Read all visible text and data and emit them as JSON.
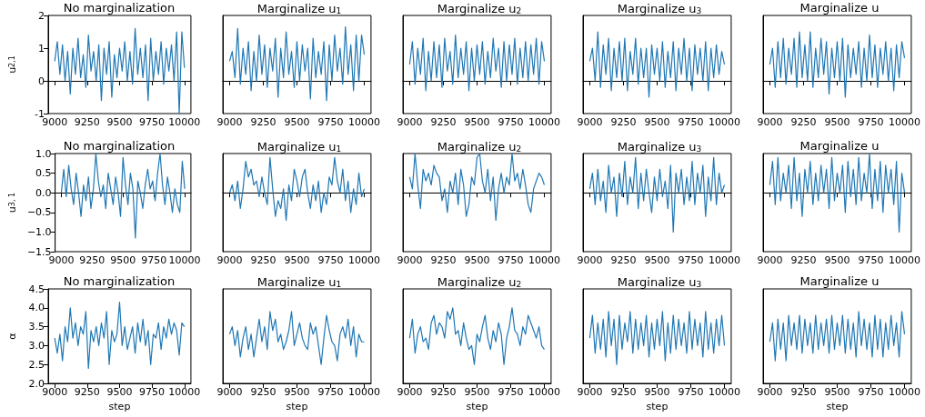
{
  "chart_data": [
    {
      "type": "line",
      "title": "No marginalization",
      "ylabel": "u$_{2,1}$",
      "xlim": [
        8950,
        10050
      ],
      "xticks": [
        9000,
        9250,
        9500,
        9750,
        10000
      ],
      "ylim": [
        -1,
        2
      ],
      "yticks": [
        -1,
        0,
        1,
        2
      ],
      "x": [
        9000,
        9020,
        9040,
        9060,
        9080,
        9100,
        9120,
        9140,
        9160,
        9180,
        9200,
        9220,
        9240,
        9260,
        9280,
        9300,
        9320,
        9340,
        9360,
        9380,
        9400,
        9420,
        9440,
        9460,
        9480,
        9500,
        9520,
        9540,
        9560,
        9580,
        9600,
        9620,
        9640,
        9660,
        9680,
        9700,
        9720,
        9740,
        9760,
        9780,
        9800,
        9820,
        9840,
        9860,
        9880,
        9900,
        9920,
        9940,
        9960,
        9980,
        10000
      ],
      "series": [
        {
          "color": "#1f77b4",
          "values": [
            0.6,
            1.2,
            0.2,
            1.1,
            0.0,
            0.9,
            -0.4,
            1.0,
            0.2,
            1.3,
            0.1,
            0.8,
            -0.2,
            1.4,
            0.3,
            0.9,
            0.0,
            1.1,
            -0.6,
            1.0,
            0.2,
            1.2,
            -0.5,
            0.8,
            0.1,
            1.0,
            0.3,
            1.2,
            0.0,
            0.9,
            -0.1,
            1.6,
            0.2,
            1.0,
            0.1,
            1.1,
            -0.6,
            1.3,
            0.0,
            0.9,
            0.2,
            1.2,
            -0.1,
            1.0,
            0.3,
            1.1,
            0.0,
            1.5,
            -1.0,
            1.5,
            0.4
          ]
        }
      ]
    },
    {
      "type": "line",
      "title": "Marginalize u$_{1}$",
      "tick_labels": "x",
      "xlim": [
        8950,
        10050
      ],
      "xticks": [
        9000,
        9250,
        9500,
        9750,
        10000
      ],
      "ylim": [
        -1,
        2
      ],
      "yticks": [
        -1,
        0,
        1,
        2
      ],
      "x": [
        9000,
        9020,
        9040,
        9060,
        9080,
        9100,
        9120,
        9140,
        9160,
        9180,
        9200,
        9220,
        9240,
        9260,
        9280,
        9300,
        9320,
        9340,
        9360,
        9380,
        9400,
        9420,
        9440,
        9460,
        9480,
        9500,
        9520,
        9540,
        9560,
        9580,
        9600,
        9620,
        9640,
        9660,
        9680,
        9700,
        9720,
        9740,
        9760,
        9780,
        9800,
        9820,
        9840,
        9860,
        9880,
        9900,
        9920,
        9940,
        9960,
        9980,
        10000
      ],
      "series": [
        {
          "color": "#1f77b4",
          "values": [
            0.6,
            0.9,
            0.1,
            1.6,
            -0.1,
            1.0,
            0.2,
            1.2,
            -0.3,
            0.9,
            0.0,
            1.4,
            0.2,
            1.1,
            -0.2,
            1.0,
            0.3,
            1.3,
            -0.5,
            1.0,
            0.1,
            1.5,
            0.2,
            0.9,
            -0.2,
            1.2,
            0.0,
            1.1,
            0.3,
            1.0,
            -0.55,
            1.3,
            0.1,
            0.9,
            0.2,
            1.2,
            -0.6,
            1.1,
            0.0,
            1.4,
            0.3,
            1.0,
            -0.1,
            1.65,
            0.2,
            1.1,
            -0.3,
            1.4,
            0.0,
            1.4,
            0.8
          ]
        }
      ]
    },
    {
      "type": "line",
      "title": "Marginalize u$_{2}$",
      "tick_labels": "x",
      "xlim": [
        8950,
        10050
      ],
      "xticks": [
        9000,
        9250,
        9500,
        9750,
        10000
      ],
      "ylim": [
        -1,
        2
      ],
      "yticks": [
        -1,
        0,
        1,
        2
      ],
      "x": [
        9000,
        9020,
        9040,
        9060,
        9080,
        9100,
        9120,
        9140,
        9160,
        9180,
        9200,
        9220,
        9240,
        9260,
        9280,
        9300,
        9320,
        9340,
        9360,
        9380,
        9400,
        9420,
        9440,
        9460,
        9480,
        9500,
        9520,
        9540,
        9560,
        9580,
        9600,
        9620,
        9640,
        9660,
        9680,
        9700,
        9720,
        9740,
        9760,
        9780,
        9800,
        9820,
        9840,
        9860,
        9880,
        9900,
        9920,
        9940,
        9960,
        9980,
        10000
      ],
      "series": [
        {
          "color": "#1f77b4",
          "values": [
            0.5,
            1.2,
            -0.1,
            1.0,
            0.2,
            1.3,
            -0.3,
            0.9,
            0.0,
            1.2,
            0.1,
            1.1,
            -0.2,
            1.3,
            0.3,
            0.9,
            -0.1,
            1.4,
            0.1,
            1.0,
            0.2,
            1.2,
            -0.3,
            1.0,
            0.0,
            1.1,
            0.2,
            1.2,
            -0.1,
            0.9,
            0.1,
            1.3,
            0.3,
            1.0,
            -0.2,
            1.2,
            0.0,
            1.1,
            0.2,
            1.3,
            -0.1,
            1.0,
            0.1,
            1.2,
            0.0,
            1.1,
            0.2,
            1.3,
            -0.1,
            1.2,
            0.6
          ]
        }
      ]
    },
    {
      "type": "line",
      "title": "Marginalize u$_{3}$",
      "tick_labels": "x",
      "xlim": [
        8950,
        10050
      ],
      "xticks": [
        9000,
        9250,
        9500,
        9750,
        10000
      ],
      "ylim": [
        -1,
        2
      ],
      "yticks": [
        -1,
        0,
        1,
        2
      ],
      "x": [
        9000,
        9020,
        9040,
        9060,
        9080,
        9100,
        9120,
        9140,
        9160,
        9180,
        9200,
        9220,
        9240,
        9260,
        9280,
        9300,
        9320,
        9340,
        9360,
        9380,
        9400,
        9420,
        9440,
        9460,
        9480,
        9500,
        9520,
        9540,
        9560,
        9580,
        9600,
        9620,
        9640,
        9660,
        9680,
        9700,
        9720,
        9740,
        9760,
        9780,
        9800,
        9820,
        9840,
        9860,
        9880,
        9900,
        9920,
        9940,
        9960,
        9980,
        10000
      ],
      "series": [
        {
          "color": "#1f77b4",
          "values": [
            0.6,
            1.0,
            0.0,
            1.5,
            -0.2,
            1.1,
            0.2,
            1.3,
            -0.3,
            1.0,
            0.1,
            1.2,
            0.0,
            1.3,
            -0.3,
            0.9,
            0.2,
            1.3,
            -0.1,
            1.0,
            0.1,
            1.0,
            -0.5,
            1.1,
            0.2,
            1.0,
            0.0,
            1.2,
            -0.2,
            0.9,
            0.1,
            1.2,
            -0.3,
            1.0,
            0.2,
            1.3,
            0.0,
            1.0,
            -0.3,
            1.1,
            0.2,
            1.0,
            0.0,
            1.2,
            -0.3,
            1.0,
            0.1,
            1.1,
            0.2,
            0.9,
            0.5
          ]
        }
      ]
    },
    {
      "type": "line",
      "title": "Marginalize u",
      "tick_labels": "x",
      "xlim": [
        8950,
        10050
      ],
      "xticks": [
        9000,
        9250,
        9500,
        9750,
        10000
      ],
      "ylim": [
        -1,
        2
      ],
      "yticks": [
        -1,
        0,
        1,
        2
      ],
      "x": [
        9000,
        9020,
        9040,
        9060,
        9080,
        9100,
        9120,
        9140,
        9160,
        9180,
        9200,
        9220,
        9240,
        9260,
        9280,
        9300,
        9320,
        9340,
        9360,
        9380,
        9400,
        9420,
        9440,
        9460,
        9480,
        9500,
        9520,
        9540,
        9560,
        9580,
        9600,
        9620,
        9640,
        9660,
        9680,
        9700,
        9720,
        9740,
        9760,
        9780,
        9800,
        9820,
        9840,
        9860,
        9880,
        9900,
        9920,
        9940,
        9960,
        9980,
        10000
      ],
      "series": [
        {
          "color": "#1f77b4",
          "values": [
            0.5,
            1.0,
            -0.2,
            1.2,
            0.1,
            1.3,
            -0.1,
            1.0,
            0.2,
            1.3,
            -0.2,
            1.5,
            0.1,
            1.1,
            0.0,
            1.5,
            -0.2,
            1.0,
            0.1,
            1.3,
            0.2,
            1.2,
            -0.4,
            1.0,
            0.1,
            1.2,
            0.0,
            1.3,
            -0.5,
            1.1,
            0.1,
            1.0,
            0.2,
            1.2,
            -0.2,
            1.0,
            0.0,
            1.4,
            0.1,
            1.1,
            -0.2,
            1.0,
            0.2,
            1.2,
            0.0,
            1.0,
            -0.3,
            1.1,
            0.1,
            1.2,
            0.7
          ]
        }
      ]
    },
    {
      "type": "line",
      "title": "No marginalization",
      "ylabel": "u$_{3, 1}$",
      "xlim": [
        8950,
        10050
      ],
      "xticks": [
        9000,
        9250,
        9500,
        9750,
        10000
      ],
      "ylim": [
        -1.5,
        1.0
      ],
      "yticks": [
        {
          "value": -1.5,
          "label": "−1.5"
        },
        {
          "value": -1.0,
          "label": "−1.0"
        },
        {
          "value": -0.5,
          "label": "−0.5"
        },
        {
          "value": 0,
          "label": "0.0"
        },
        {
          "value": 0.5,
          "label": "0.5"
        },
        {
          "value": 1.0,
          "label": "1.0"
        }
      ],
      "x": [
        9000,
        9020,
        9040,
        9060,
        9080,
        9100,
        9120,
        9140,
        9160,
        9180,
        9200,
        9220,
        9240,
        9260,
        9280,
        9300,
        9320,
        9340,
        9360,
        9380,
        9400,
        9420,
        9440,
        9460,
        9480,
        9500,
        9520,
        9540,
        9560,
        9580,
        9600,
        9620,
        9640,
        9660,
        9680,
        9700,
        9720,
        9740,
        9760,
        9780,
        9800,
        9820,
        9840,
        9860,
        9880,
        9900,
        9920,
        9940,
        9960,
        9980,
        10000
      ],
      "series": [
        {
          "color": "#1f77b4",
          "values": [
            0.0,
            0.6,
            -0.1,
            0.7,
            0.1,
            -0.3,
            0.5,
            0.0,
            -0.6,
            0.2,
            -0.2,
            0.4,
            -0.4,
            0.1,
            1.0,
            0.3,
            -0.1,
            0.2,
            -0.4,
            0.5,
            0.1,
            -0.3,
            0.4,
            0.0,
            -0.6,
            0.9,
            0.2,
            -0.3,
            0.5,
            0.1,
            -1.15,
            0.3,
            0.0,
            -0.4,
            0.2,
            0.6,
            0.1,
            0.3,
            -0.2,
            0.5,
            1.0,
            0.2,
            -0.3,
            0.4,
            0.0,
            -0.5,
            0.1,
            -0.3,
            -0.5,
            0.8,
            0.1
          ]
        }
      ]
    },
    {
      "type": "line",
      "title": "Marginalize u$_{1}$",
      "tick_labels": "x",
      "xlim": [
        8950,
        10050
      ],
      "xticks": [
        9000,
        9250,
        9500,
        9750,
        10000
      ],
      "ylim": [
        -1.5,
        1.0
      ],
      "yticks": [
        -1.5,
        -1.0,
        -0.5,
        0,
        0.5,
        1.0
      ],
      "x": [
        9000,
        9020,
        9040,
        9060,
        9080,
        9100,
        9120,
        9140,
        9160,
        9180,
        9200,
        9220,
        9240,
        9260,
        9280,
        9300,
        9320,
        9340,
        9360,
        9380,
        9400,
        9420,
        9440,
        9460,
        9480,
        9500,
        9520,
        9540,
        9560,
        9580,
        9600,
        9620,
        9640,
        9660,
        9680,
        9700,
        9720,
        9740,
        9760,
        9780,
        9800,
        9820,
        9840,
        9860,
        9880,
        9900,
        9920,
        9940,
        9960,
        9980,
        10000
      ],
      "series": [
        {
          "color": "#1f77b4",
          "values": [
            0.0,
            0.2,
            -0.2,
            0.3,
            -0.4,
            0.1,
            0.8,
            0.4,
            0.6,
            0.2,
            0.3,
            -0.1,
            0.4,
            0.0,
            -0.3,
            0.9,
            0.1,
            -0.6,
            -0.2,
            -0.4,
            0.1,
            -0.7,
            0.2,
            -0.2,
            0.6,
            0.3,
            -0.1,
            0.4,
            0.6,
            0.0,
            -0.4,
            0.2,
            -0.2,
            0.3,
            -0.5,
            0.0,
            -0.3,
            0.4,
            0.2,
            0.9,
            0.3,
            0.0,
            0.6,
            -0.2,
            0.3,
            -0.5,
            0.1,
            -0.3,
            0.5,
            -0.1,
            0.1
          ]
        }
      ]
    },
    {
      "type": "line",
      "title": "Marginalize u$_{2}$",
      "tick_labels": "x",
      "xlim": [
        8950,
        10050
      ],
      "xticks": [
        9000,
        9250,
        9500,
        9750,
        10000
      ],
      "ylim": [
        -1.5,
        1.0
      ],
      "yticks": [
        -1.5,
        -1.0,
        -0.5,
        0,
        0.5,
        1.0
      ],
      "x": [
        9000,
        9020,
        9040,
        9060,
        9080,
        9100,
        9120,
        9140,
        9160,
        9180,
        9200,
        9220,
        9240,
        9260,
        9280,
        9300,
        9320,
        9340,
        9360,
        9380,
        9400,
        9420,
        9440,
        9460,
        9480,
        9500,
        9520,
        9540,
        9560,
        9580,
        9600,
        9620,
        9640,
        9660,
        9680,
        9700,
        9720,
        9740,
        9760,
        9780,
        9800,
        9820,
        9840,
        9860,
        9880,
        9900,
        9920,
        9940,
        9960,
        9980,
        10000
      ],
      "series": [
        {
          "color": "#1f77b4",
          "values": [
            0.4,
            0.1,
            1.0,
            0.2,
            -0.4,
            0.6,
            0.3,
            0.5,
            0.2,
            0.7,
            0.5,
            0.4,
            -0.2,
            0.1,
            -0.5,
            0.3,
            0.0,
            0.5,
            -0.3,
            0.6,
            0.2,
            -0.6,
            -0.3,
            0.4,
            0.2,
            0.9,
            1.0,
            0.3,
            0.0,
            0.6,
            -0.2,
            0.4,
            -0.7,
            0.1,
            0.5,
            0.0,
            0.4,
            0.2,
            1.0,
            0.3,
            0.5,
            0.1,
            0.6,
            0.2,
            -0.3,
            -0.5,
            0.1,
            0.3,
            0.5,
            0.4,
            0.2
          ]
        }
      ]
    },
    {
      "type": "line",
      "title": "Marginalize u$_{3}$",
      "tick_labels": "x",
      "xlim": [
        8950,
        10050
      ],
      "xticks": [
        9000,
        9250,
        9500,
        9750,
        10000
      ],
      "ylim": [
        -1.5,
        1.0
      ],
      "yticks": [
        -1.5,
        -1.0,
        -0.5,
        0,
        0.5,
        1.0
      ],
      "x": [
        9000,
        9020,
        9040,
        9060,
        9080,
        9100,
        9120,
        9140,
        9160,
        9180,
        9200,
        9220,
        9240,
        9260,
        9280,
        9300,
        9320,
        9340,
        9360,
        9380,
        9400,
        9420,
        9440,
        9460,
        9480,
        9500,
        9520,
        9540,
        9560,
        9580,
        9600,
        9620,
        9640,
        9660,
        9680,
        9700,
        9720,
        9740,
        9760,
        9780,
        9800,
        9820,
        9840,
        9860,
        9880,
        9900,
        9920,
        9940,
        9960,
        9980,
        10000
      ],
      "series": [
        {
          "color": "#1f77b4",
          "values": [
            0.1,
            0.5,
            -0.3,
            0.6,
            -0.2,
            0.3,
            -0.5,
            0.7,
            0.0,
            0.4,
            -0.6,
            0.5,
            -0.1,
            0.8,
            -0.3,
            0.4,
            0.0,
            0.9,
            -0.4,
            0.5,
            -0.2,
            0.6,
            0.0,
            -0.5,
            0.4,
            -0.2,
            0.6,
            -0.1,
            0.3,
            -0.4,
            0.7,
            -1.0,
            0.5,
            0.0,
            0.6,
            -0.3,
            0.4,
            -0.2,
            0.8,
            -0.3,
            0.5,
            0.0,
            0.7,
            -0.6,
            0.4,
            -0.2,
            0.9,
            -0.3,
            0.5,
            0.0,
            0.2
          ]
        }
      ]
    },
    {
      "type": "line",
      "title": "Marginalize u",
      "tick_labels": "x",
      "xlim": [
        8950,
        10050
      ],
      "xticks": [
        9000,
        9250,
        9500,
        9750,
        10000
      ],
      "ylim": [
        -1.5,
        1.0
      ],
      "yticks": [
        -1.5,
        -1.0,
        -0.5,
        0,
        0.5,
        1.0
      ],
      "x": [
        9000,
        9020,
        9040,
        9060,
        9080,
        9100,
        9120,
        9140,
        9160,
        9180,
        9200,
        9220,
        9240,
        9260,
        9280,
        9300,
        9320,
        9340,
        9360,
        9380,
        9400,
        9420,
        9440,
        9460,
        9480,
        9500,
        9520,
        9540,
        9560,
        9580,
        9600,
        9620,
        9640,
        9660,
        9680,
        9700,
        9720,
        9740,
        9760,
        9780,
        9800,
        9820,
        9840,
        9860,
        9880,
        9900,
        9920,
        9940,
        9960,
        9980,
        10000
      ],
      "series": [
        {
          "color": "#1f77b4",
          "values": [
            0.2,
            0.8,
            -0.3,
            0.9,
            -0.2,
            0.5,
            0.0,
            0.7,
            -0.4,
            0.9,
            -0.2,
            0.5,
            -0.6,
            0.6,
            0.0,
            0.8,
            -0.3,
            0.5,
            -0.2,
            0.7,
            0.0,
            0.6,
            -0.4,
            0.9,
            -0.2,
            0.5,
            0.0,
            0.7,
            -0.5,
            0.8,
            -0.1,
            0.6,
            -0.3,
            0.9,
            -0.2,
            0.5,
            0.0,
            1.0,
            -0.4,
            0.6,
            -0.2,
            0.8,
            -0.5,
            0.7,
            0.0,
            0.6,
            -0.3,
            0.8,
            -1.0,
            0.5,
            0.0
          ]
        }
      ]
    },
    {
      "type": "line",
      "title": "No marginalization",
      "xlabel": "step",
      "ylabel": "α",
      "xlim": [
        8950,
        10050
      ],
      "xticks": [
        9000,
        9250,
        9500,
        9750,
        10000
      ],
      "ylim": [
        2.0,
        4.5
      ],
      "yticks": [
        {
          "value": 2,
          "label": "2.0"
        },
        {
          "value": 2.5,
          "label": "2.5"
        },
        {
          "value": 3,
          "label": "3.0"
        },
        {
          "value": 3.5,
          "label": "3.5"
        },
        {
          "value": 4,
          "label": "4.0"
        },
        {
          "value": 4.5,
          "label": "4.5"
        }
      ],
      "x": [
        9000,
        9020,
        9040,
        9060,
        9080,
        9100,
        9120,
        9140,
        9160,
        9180,
        9200,
        9220,
        9240,
        9260,
        9280,
        9300,
        9320,
        9340,
        9360,
        9380,
        9400,
        9420,
        9440,
        9460,
        9480,
        9500,
        9520,
        9540,
        9560,
        9580,
        9600,
        9620,
        9640,
        9660,
        9680,
        9700,
        9720,
        9740,
        9760,
        9780,
        9800,
        9820,
        9840,
        9860,
        9880,
        9900,
        9920,
        9940,
        9960,
        9980,
        10000
      ],
      "series": [
        {
          "color": "#1f77b4",
          "values": [
            3.2,
            2.8,
            3.3,
            2.6,
            3.5,
            3.1,
            4.0,
            3.2,
            3.6,
            3.0,
            3.5,
            3.3,
            3.9,
            2.4,
            3.4,
            3.1,
            3.5,
            3.0,
            3.6,
            3.2,
            3.9,
            2.5,
            3.4,
            3.1,
            3.3,
            4.15,
            3.0,
            3.5,
            2.9,
            3.2,
            3.5,
            2.8,
            3.6,
            3.1,
            3.7,
            3.0,
            3.4,
            2.5,
            3.3,
            3.2,
            3.6,
            2.9,
            3.5,
            3.2,
            3.7,
            3.3,
            3.6,
            3.4,
            2.75,
            3.6,
            3.5
          ]
        }
      ]
    },
    {
      "type": "line",
      "title": "Marginalize u$_{1}$",
      "xlabel": "step",
      "tick_labels": "x",
      "xlim": [
        8950,
        10050
      ],
      "xticks": [
        9000,
        9250,
        9500,
        9750,
        10000
      ],
      "ylim": [
        2.0,
        4.5
      ],
      "yticks": [
        2,
        2.5,
        3,
        3.5,
        4,
        4.5
      ],
      "x": [
        9000,
        9020,
        9040,
        9060,
        9080,
        9100,
        9120,
        9140,
        9160,
        9180,
        9200,
        9220,
        9240,
        9260,
        9280,
        9300,
        9320,
        9340,
        9360,
        9380,
        9400,
        9420,
        9440,
        9460,
        9480,
        9500,
        9520,
        9540,
        9560,
        9580,
        9600,
        9620,
        9640,
        9660,
        9680,
        9700,
        9720,
        9740,
        9760,
        9780,
        9800,
        9820,
        9840,
        9860,
        9880,
        9900,
        9920,
        9940,
        9960,
        9980,
        10000
      ],
      "series": [
        {
          "color": "#1f77b4",
          "values": [
            3.3,
            3.5,
            3.0,
            3.4,
            2.7,
            3.2,
            3.5,
            2.9,
            3.3,
            2.7,
            3.2,
            3.7,
            3.1,
            3.5,
            2.9,
            3.9,
            3.4,
            3.7,
            3.1,
            3.3,
            2.9,
            3.1,
            3.4,
            3.9,
            3.0,
            3.3,
            3.6,
            3.2,
            3.0,
            2.9,
            3.6,
            3.3,
            3.5,
            3.0,
            2.5,
            3.2,
            3.8,
            3.4,
            3.1,
            3.0,
            2.6,
            3.3,
            3.5,
            3.2,
            3.7,
            3.0,
            3.5,
            2.7,
            3.3,
            3.1,
            3.1
          ]
        }
      ]
    },
    {
      "type": "line",
      "title": "Marginalize u$_{2}$",
      "xlabel": "step",
      "tick_labels": "x",
      "xlim": [
        8950,
        10050
      ],
      "xticks": [
        9000,
        9250,
        9500,
        9750,
        10000
      ],
      "ylim": [
        2.0,
        4.5
      ],
      "yticks": [
        2,
        2.5,
        3,
        3.5,
        4,
        4.5
      ],
      "x": [
        9000,
        9020,
        9040,
        9060,
        9080,
        9100,
        9120,
        9140,
        9160,
        9180,
        9200,
        9220,
        9240,
        9260,
        9280,
        9300,
        9320,
        9340,
        9360,
        9380,
        9400,
        9420,
        9440,
        9460,
        9480,
        9500,
        9520,
        9540,
        9560,
        9580,
        9600,
        9620,
        9640,
        9660,
        9680,
        9700,
        9720,
        9740,
        9760,
        9780,
        9800,
        9820,
        9840,
        9860,
        9880,
        9900,
        9920,
        9940,
        9960,
        9980,
        10000
      ],
      "series": [
        {
          "color": "#1f77b4",
          "values": [
            3.2,
            3.7,
            2.8,
            3.3,
            3.5,
            3.1,
            3.2,
            2.9,
            3.6,
            3.8,
            3.3,
            3.6,
            3.5,
            3.2,
            3.9,
            3.7,
            4.0,
            3.3,
            3.4,
            3.0,
            3.6,
            3.2,
            2.9,
            3.0,
            2.5,
            3.3,
            3.1,
            3.5,
            3.8,
            3.2,
            2.9,
            3.4,
            3.1,
            3.6,
            3.3,
            2.5,
            3.2,
            3.5,
            4.0,
            3.4,
            3.3,
            3.0,
            3.5,
            3.3,
            3.8,
            3.6,
            3.4,
            3.2,
            3.5,
            3.0,
            2.9
          ]
        }
      ]
    },
    {
      "type": "line",
      "title": "Marginalize u$_{3}$",
      "xlabel": "step",
      "tick_labels": "x",
      "xlim": [
        8950,
        10050
      ],
      "xticks": [
        9000,
        9250,
        9500,
        9750,
        10000
      ],
      "ylim": [
        2.0,
        4.5
      ],
      "yticks": [
        2,
        2.5,
        3,
        3.5,
        4,
        4.5
      ],
      "x": [
        9000,
        9020,
        9040,
        9060,
        9080,
        9100,
        9120,
        9140,
        9160,
        9180,
        9200,
        9220,
        9240,
        9260,
        9280,
        9300,
        9320,
        9340,
        9360,
        9380,
        9400,
        9420,
        9440,
        9460,
        9480,
        9500,
        9520,
        9540,
        9560,
        9580,
        9600,
        9620,
        9640,
        9660,
        9680,
        9700,
        9720,
        9740,
        9760,
        9780,
        9800,
        9820,
        9840,
        9860,
        9880,
        9900,
        9920,
        9940,
        9960,
        9980,
        10000
      ],
      "series": [
        {
          "color": "#1f77b4",
          "values": [
            3.2,
            3.8,
            2.8,
            3.6,
            2.9,
            3.7,
            2.7,
            3.9,
            3.0,
            3.7,
            2.5,
            3.8,
            2.9,
            3.6,
            3.1,
            3.9,
            2.8,
            3.7,
            2.9,
            3.6,
            3.0,
            3.8,
            2.7,
            3.6,
            2.9,
            3.7,
            3.0,
            3.9,
            2.6,
            3.6,
            2.8,
            3.8,
            2.9,
            3.7,
            3.0,
            3.6,
            2.8,
            3.9,
            2.9,
            3.7,
            3.0,
            3.6,
            2.7,
            3.9,
            2.9,
            3.6,
            2.8,
            3.7,
            3.0,
            3.8,
            3.0
          ]
        }
      ]
    },
    {
      "type": "line",
      "title": "Marginalize u",
      "xlabel": "step",
      "tick_labels": "x",
      "xlim": [
        8950,
        10050
      ],
      "xticks": [
        9000,
        9250,
        9500,
        9750,
        10000
      ],
      "ylim": [
        2.0,
        4.5
      ],
      "yticks": [
        2,
        2.5,
        3,
        3.5,
        4,
        4.5
      ],
      "x": [
        9000,
        9020,
        9040,
        9060,
        9080,
        9100,
        9120,
        9140,
        9160,
        9180,
        9200,
        9220,
        9240,
        9260,
        9280,
        9300,
        9320,
        9340,
        9360,
        9380,
        9400,
        9420,
        9440,
        9460,
        9480,
        9500,
        9520,
        9540,
        9560,
        9580,
        9600,
        9620,
        9640,
        9660,
        9680,
        9700,
        9720,
        9740,
        9760,
        9780,
        9800,
        9820,
        9840,
        9860,
        9880,
        9900,
        9920,
        9940,
        9960,
        9980,
        10000
      ],
      "series": [
        {
          "color": "#1f77b4",
          "values": [
            3.1,
            3.6,
            2.6,
            3.7,
            2.9,
            3.6,
            2.6,
            3.8,
            3.0,
            3.6,
            2.9,
            3.8,
            2.8,
            3.7,
            3.0,
            3.6,
            2.8,
            3.8,
            2.9,
            3.6,
            3.0,
            3.7,
            2.8,
            3.8,
            2.9,
            3.6,
            3.0,
            3.8,
            2.8,
            3.7,
            2.9,
            3.6,
            2.7,
            3.9,
            3.0,
            3.7,
            2.9,
            3.6,
            2.7,
            3.8,
            2.9,
            3.7,
            2.7,
            3.6,
            2.9,
            3.8,
            3.0,
            3.6,
            2.7,
            3.9,
            3.3
          ]
        }
      ]
    }
  ]
}
